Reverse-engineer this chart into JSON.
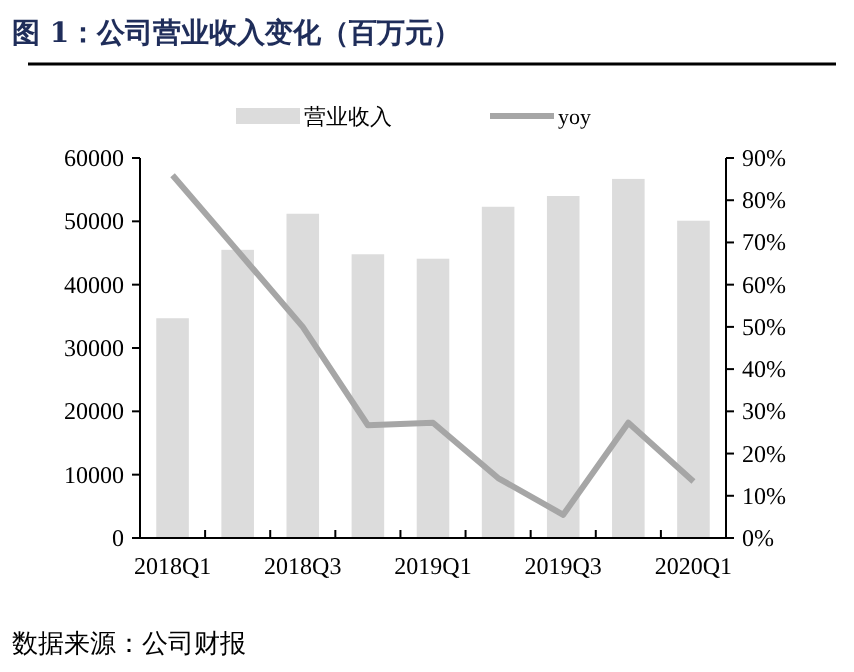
{
  "chart_data": {
    "type": "bar",
    "title": "图 1：公司营业收入变化（百万元）",
    "categories": [
      "2018Q1",
      null,
      "2018Q3",
      null,
      "2019Q1",
      null,
      "2019Q3",
      null,
      "2020Q1"
    ],
    "series": [
      {
        "name": "营业收入",
        "color": "#dcdcdc",
        "values": [
          34700,
          45500,
          51200,
          44800,
          44100,
          52300,
          54000,
          56700,
          50100
        ]
      },
      {
        "name": "yoy",
        "type": "line",
        "axis": "y2",
        "color": "#a6a6a6",
        "values": [
          85.9,
          68,
          50,
          26.7,
          27.3,
          14.2,
          5.5,
          27.3,
          13.4
        ]
      }
    ],
    "ylim": [
      0,
      60000
    ],
    "yticks": [
      0,
      10000,
      20000,
      30000,
      40000,
      50000,
      60000
    ],
    "y2lim": [
      0,
      90
    ],
    "y2ticks": [
      {
        "value": 0,
        "label": "0%"
      },
      {
        "value": 10,
        "label": "10%"
      },
      {
        "value": 20,
        "label": "20%"
      },
      {
        "value": 30,
        "label": "30%"
      },
      {
        "value": 40,
        "label": "40%"
      },
      {
        "value": 50,
        "label": "50%"
      },
      {
        "value": 60,
        "label": "60%"
      },
      {
        "value": 70,
        "label": "70%"
      },
      {
        "value": 80,
        "label": "80%"
      },
      {
        "value": 90,
        "label": "90%"
      }
    ],
    "legend": "top",
    "annotations": [
      "数据来源：公司财报"
    ]
  }
}
